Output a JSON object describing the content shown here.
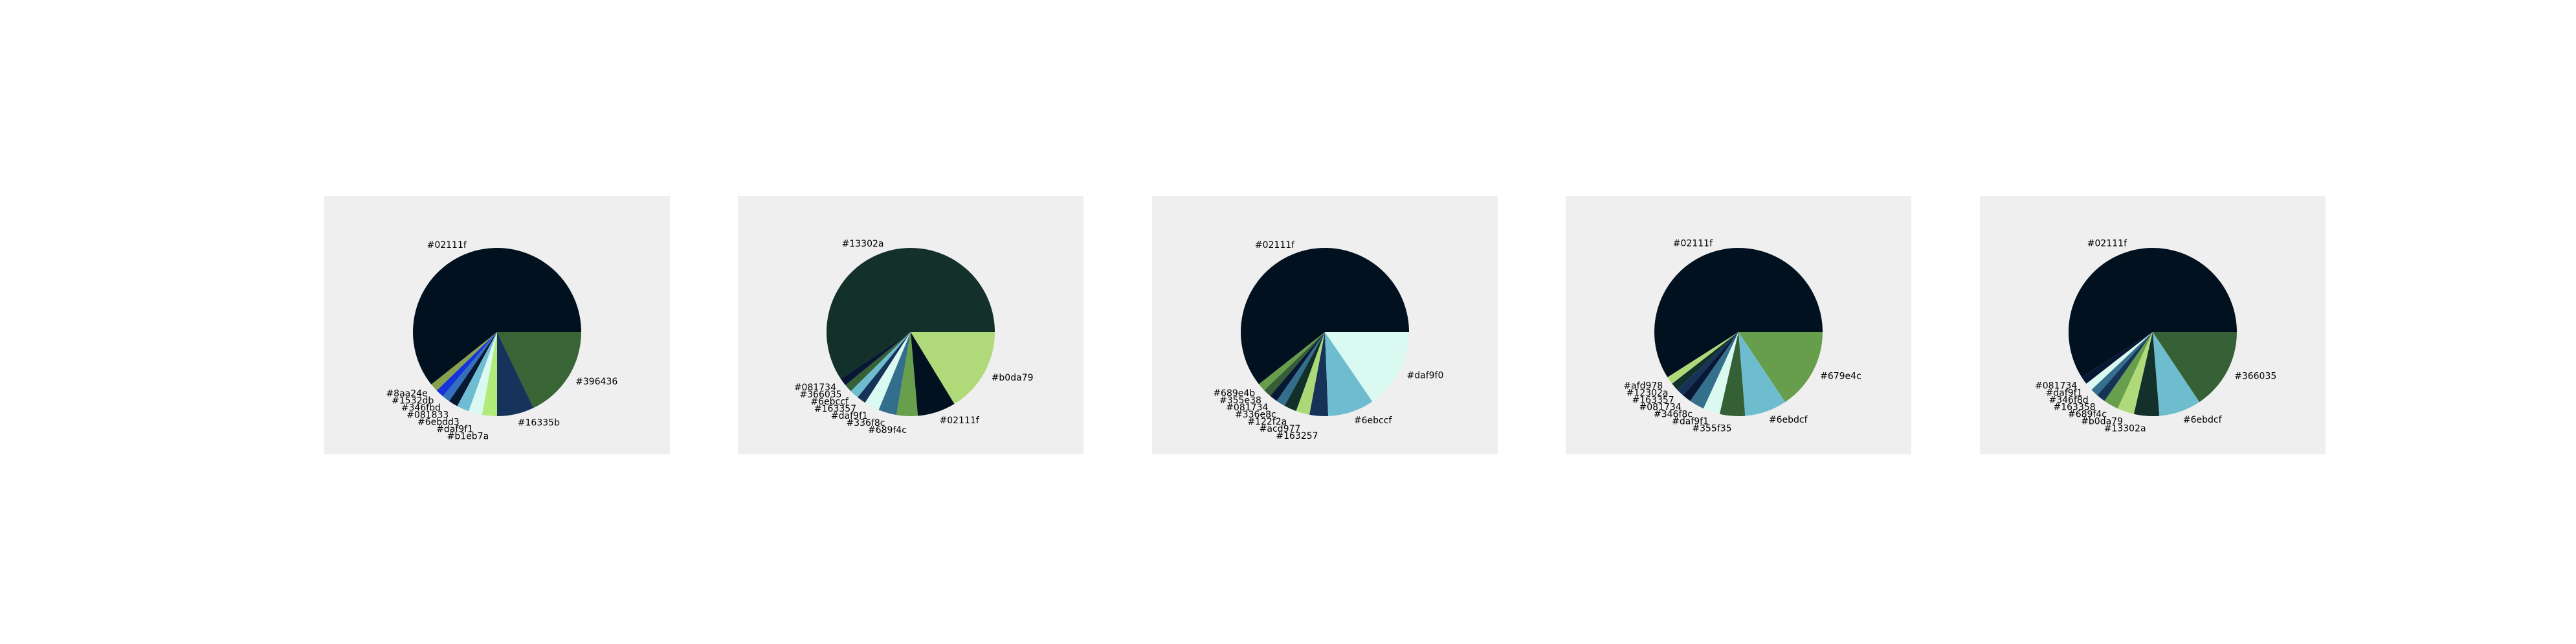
{
  "chart_data": [
    {
      "type": "pie",
      "labels": [
        "#02111f",
        "#8aa24e",
        "#1532db",
        "#346fbd",
        "#081833",
        "#6ebdd3",
        "#daf9f1",
        "#b1eb7a",
        "#16335b",
        "#396436"
      ],
      "values": [
        51.0,
        1.3,
        1.3,
        1.3,
        1.5,
        2.0,
        2.2,
        2.4,
        6.0,
        15.0
      ],
      "colors": [
        "#02111f",
        "#8aa24e",
        "#1532db",
        "#346fbd",
        "#081833",
        "#6ebdd3",
        "#daf9f1",
        "#b1eb7a",
        "#16335b",
        "#396436"
      ]
    },
    {
      "type": "pie",
      "labels": [
        "#13302a",
        "#081734",
        "#366035",
        "#6ebccf",
        "#163357",
        "#daf9f1",
        "#336f8c",
        "#689f4c",
        "#02111f",
        "#b0da79"
      ],
      "values": [
        51.0,
        1.3,
        1.3,
        1.5,
        1.5,
        2.5,
        3.0,
        3.5,
        6.3,
        14.0
      ],
      "colors": [
        "#13302a",
        "#081734",
        "#366035",
        "#6ebccf",
        "#163357",
        "#daf9f1",
        "#336f8c",
        "#689f4c",
        "#02111f",
        "#b0da79"
      ]
    },
    {
      "type": "pie",
      "labels": [
        "#02111f",
        "#689e4b",
        "#355e38",
        "#081734",
        "#336e8c",
        "#122f2a",
        "#acd977",
        "#163257",
        "#6ebccf",
        "#daf9f0"
      ],
      "values": [
        51.0,
        1.3,
        1.3,
        1.3,
        1.5,
        2.0,
        2.2,
        3.0,
        7.5,
        13.0
      ],
      "colors": [
        "#02111f",
        "#689e4b",
        "#355e38",
        "#081734",
        "#336e8c",
        "#122f2a",
        "#acd977",
        "#163257",
        "#6ebccf",
        "#daf9f0"
      ]
    },
    {
      "type": "pie",
      "labels": [
        "#02111f",
        "#afd978",
        "#12302a",
        "#163357",
        "#081734",
        "#346f8c",
        "#daf9f1",
        "#355f35",
        "#6ebdcf",
        "#679e4c"
      ],
      "values": [
        51.0,
        1.3,
        1.3,
        1.3,
        1.5,
        2.5,
        2.8,
        4.2,
        7.0,
        13.5
      ],
      "colors": [
        "#02111f",
        "#afd978",
        "#12302a",
        "#163357",
        "#081734",
        "#346f8c",
        "#daf9f1",
        "#355f35",
        "#6ebdcf",
        "#679e4c"
      ]
    },
    {
      "type": "pie",
      "labels": [
        "#02111f",
        "#081734",
        "#daf9f1",
        "#346f8d",
        "#163358",
        "#689f4c",
        "#b0da79",
        "#13302a",
        "#6ebdcf",
        "#366035"
      ],
      "values": [
        51.0,
        1.3,
        1.3,
        1.3,
        1.5,
        2.5,
        2.8,
        4.2,
        7.0,
        13.5
      ],
      "colors": [
        "#02111f",
        "#081734",
        "#daf9f1",
        "#346f8d",
        "#163358",
        "#689f4c",
        "#b0da79",
        "#13302a",
        "#6ebdcf",
        "#366035"
      ]
    }
  ]
}
